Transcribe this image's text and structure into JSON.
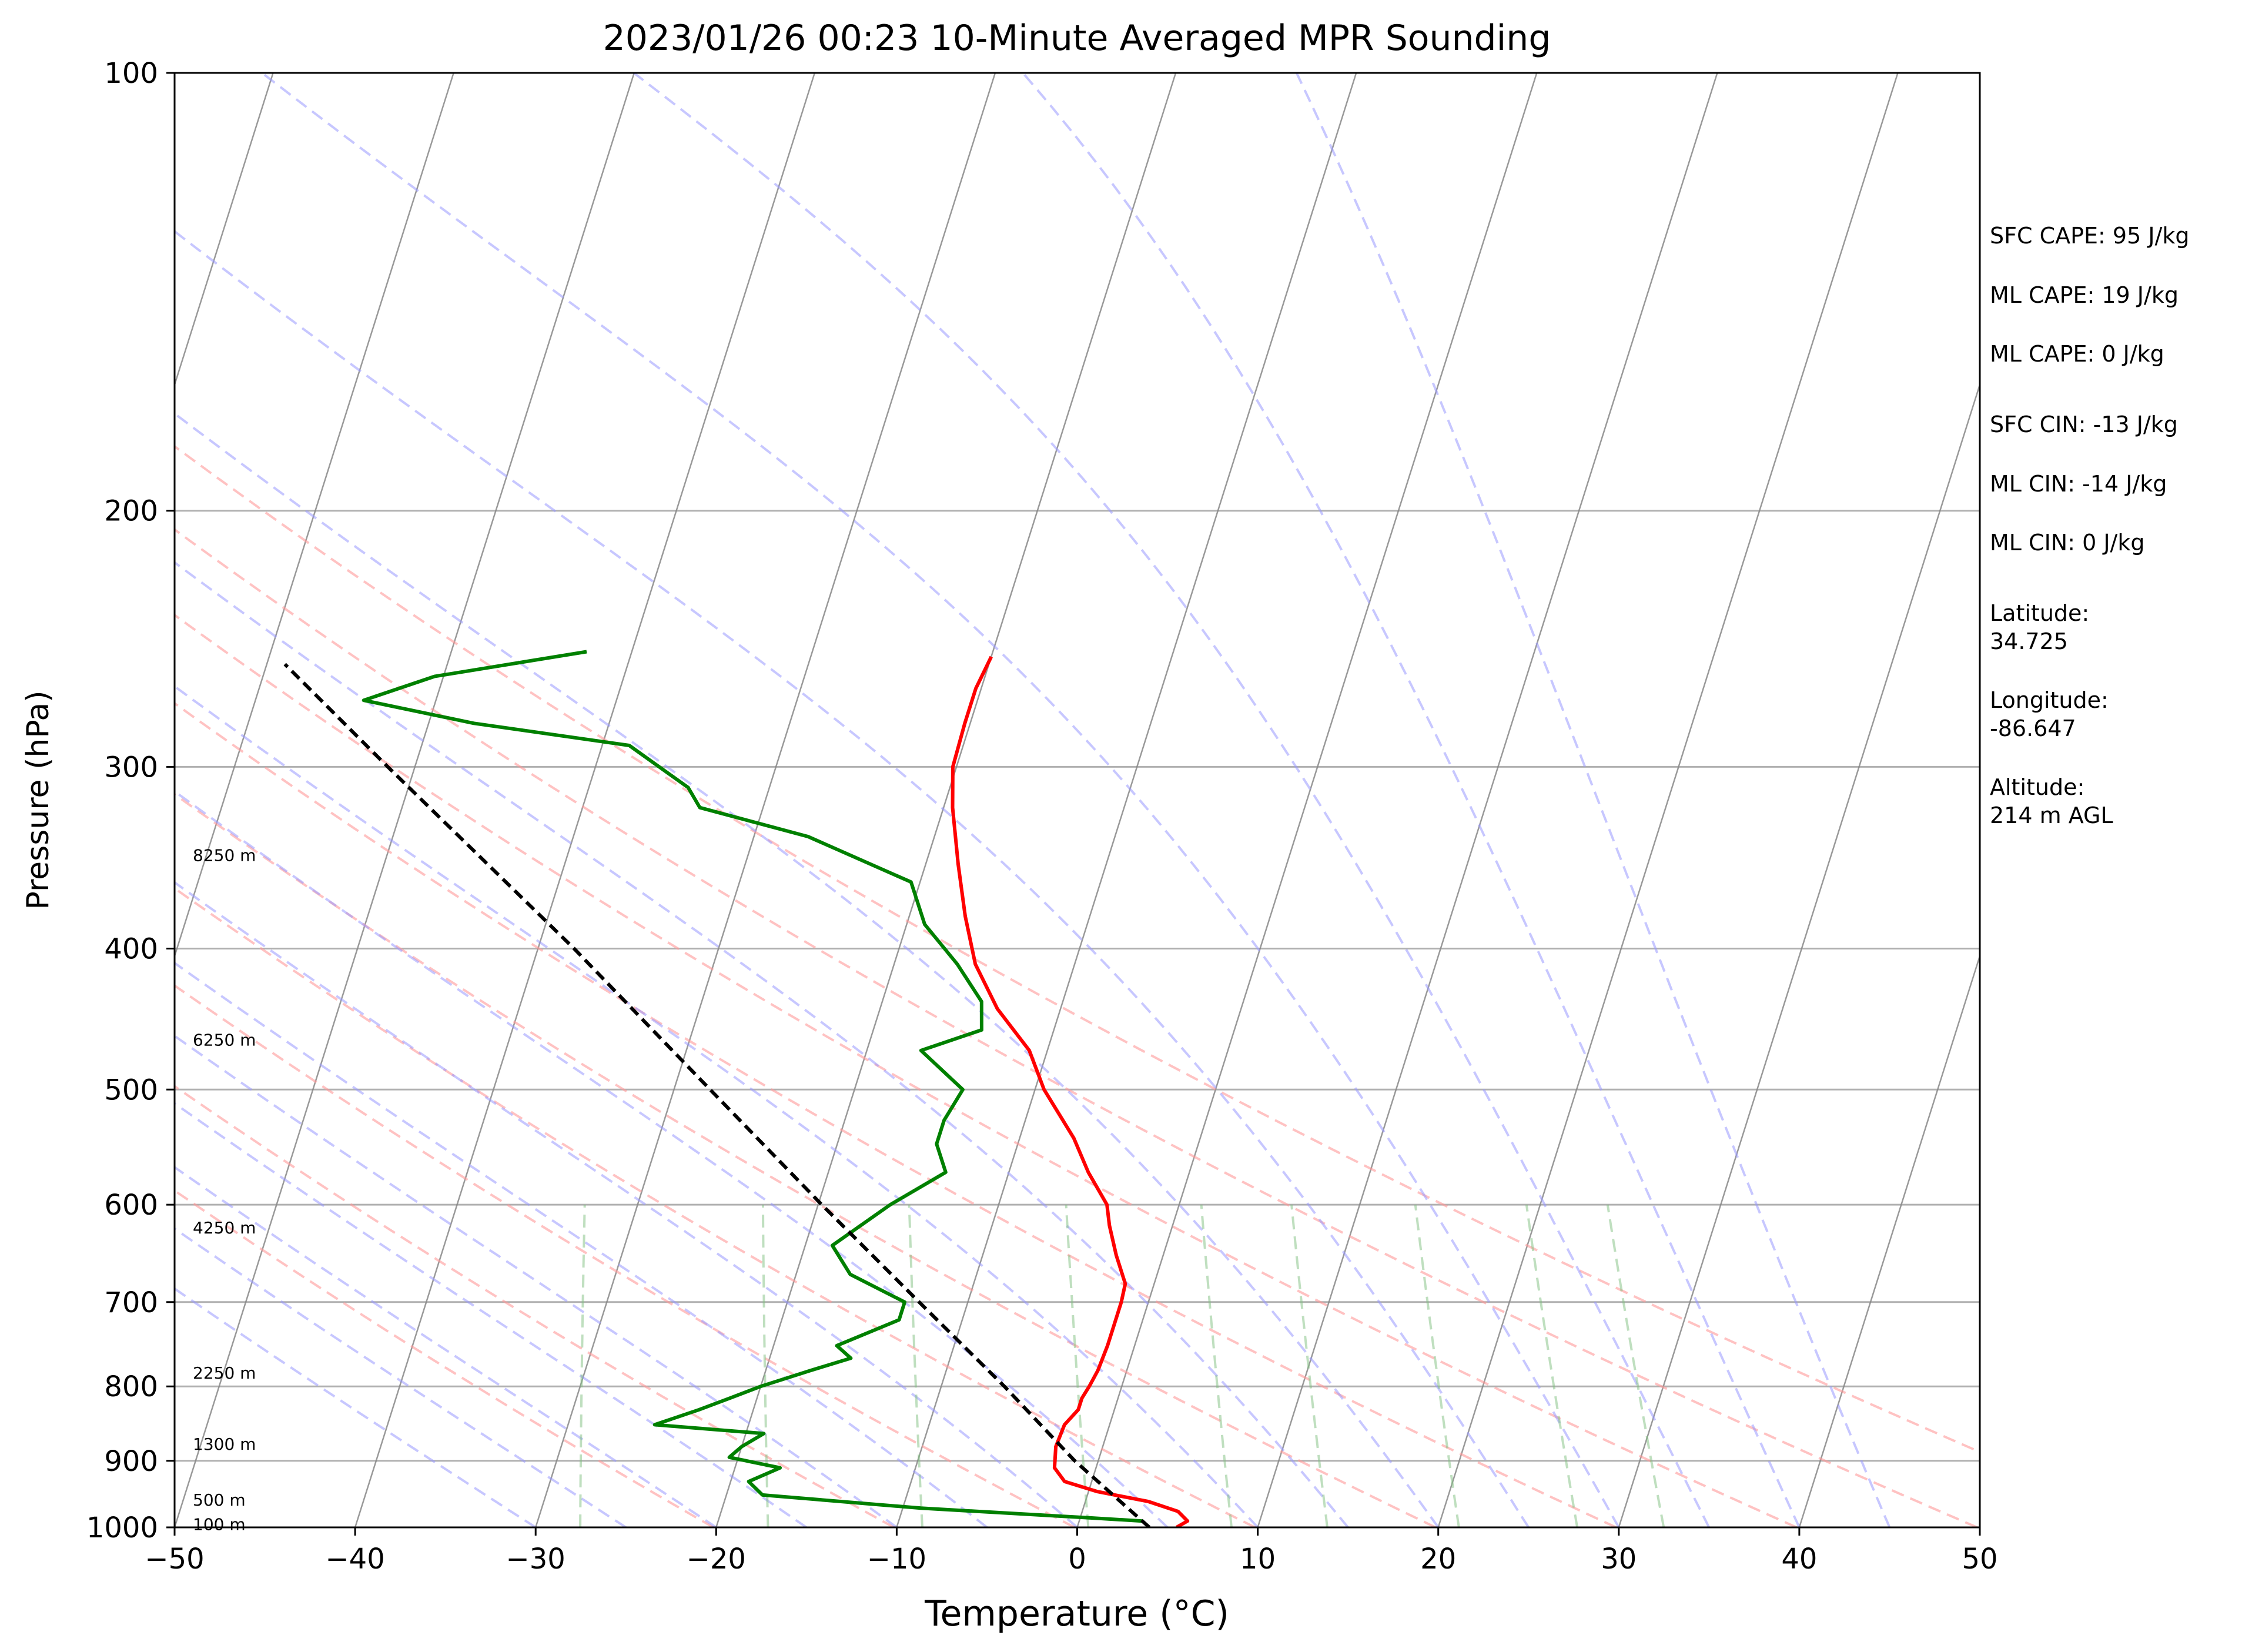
{
  "chart_data": {
    "type": "line",
    "subtype": "skew-t log-p sounding",
    "title": "2023/01/26 00:23 10-Minute Averaged MPR Sounding",
    "xlabel": "Temperature (°C)",
    "ylabel": "Pressure (hPa)",
    "xlim": [
      -50,
      50
    ],
    "ylim": [
      1000,
      100
    ],
    "y_scale": "log",
    "grid": true,
    "x_ticks": [
      -50,
      -40,
      -30,
      -20,
      -10,
      0,
      10,
      20,
      30,
      40,
      50
    ],
    "x_tick_labels": [
      "−50",
      "−40",
      "−30",
      "−20",
      "−10",
      "0",
      "10",
      "20",
      "30",
      "40",
      "50"
    ],
    "y_ticks": [
      1000,
      900,
      800,
      700,
      600,
      500,
      400,
      300,
      200,
      100
    ],
    "y_tick_labels": [
      "1000",
      "900",
      "800",
      "700",
      "600",
      "500",
      "400",
      "300",
      "200",
      "100"
    ],
    "background_lines": {
      "isotherms": {
        "color": "#888888",
        "start": -140,
        "end": 50,
        "step": 10
      },
      "dry_adiabats": {
        "color": "#ff9999",
        "theta_k": [
          253,
          263,
          273,
          283,
          293,
          303,
          313,
          323,
          333
        ]
      },
      "moist_adiabats": {
        "color": "#9999ff",
        "start_temps_c": [
          -30,
          -25,
          -20,
          -15,
          -10,
          -5,
          0,
          5,
          10,
          15,
          20,
          25,
          30,
          35,
          40,
          45
        ]
      },
      "mixing_ratio_lines": {
        "color": "#80c080",
        "p_range_hpa": [
          1000,
          600
        ],
        "w_g_per_kg": [
          0.4,
          1,
          2,
          4,
          7,
          10,
          16,
          24,
          32
        ]
      }
    },
    "series": [
      {
        "key": "temperature",
        "color": "#ff0000",
        "points": [
          [
            1000,
            5.5
          ],
          [
            990,
            6.0
          ],
          [
            975,
            5.3
          ],
          [
            960,
            3.5
          ],
          [
            945,
            0.5
          ],
          [
            930,
            -1.5
          ],
          [
            910,
            -2.3
          ],
          [
            880,
            -2.6
          ],
          [
            850,
            -2.5
          ],
          [
            830,
            -2.0
          ],
          [
            815,
            -2.0
          ],
          [
            800,
            -1.8
          ],
          [
            780,
            -1.6
          ],
          [
            750,
            -1.5
          ],
          [
            720,
            -1.5
          ],
          [
            700,
            -1.5
          ],
          [
            680,
            -1.6
          ],
          [
            650,
            -2.6
          ],
          [
            620,
            -3.5
          ],
          [
            600,
            -4.0
          ],
          [
            570,
            -5.6
          ],
          [
            540,
            -7.0
          ],
          [
            500,
            -9.5
          ],
          [
            470,
            -11.0
          ],
          [
            440,
            -13.5
          ],
          [
            410,
            -15.5
          ],
          [
            380,
            -16.9
          ],
          [
            350,
            -18.2
          ],
          [
            320,
            -19.5
          ],
          [
            300,
            -20.2
          ],
          [
            280,
            -20.3
          ],
          [
            265,
            -20.3
          ],
          [
            252,
            -20.0
          ]
        ]
      },
      {
        "key": "dewpoint",
        "color": "#008000",
        "points": [
          [
            990,
            3.5
          ],
          [
            985,
            0.5
          ],
          [
            970,
            -9.0
          ],
          [
            950,
            -18.0
          ],
          [
            930,
            -19.0
          ],
          [
            910,
            -17.5
          ],
          [
            895,
            -20.5
          ],
          [
            880,
            -20.0
          ],
          [
            862,
            -19.0
          ],
          [
            850,
            -25.2
          ],
          [
            830,
            -23.0
          ],
          [
            815,
            -21.5
          ],
          [
            800,
            -20.0
          ],
          [
            780,
            -17.5
          ],
          [
            765,
            -15.5
          ],
          [
            750,
            -16.5
          ],
          [
            720,
            -13.5
          ],
          [
            700,
            -13.5
          ],
          [
            670,
            -17.0
          ],
          [
            640,
            -18.5
          ],
          [
            600,
            -16.0
          ],
          [
            570,
            -13.5
          ],
          [
            545,
            -14.5
          ],
          [
            525,
            -14.5
          ],
          [
            500,
            -14.0
          ],
          [
            470,
            -17.0
          ],
          [
            455,
            -14.0
          ],
          [
            435,
            -14.5
          ],
          [
            410,
            -16.5
          ],
          [
            385,
            -19.0
          ],
          [
            360,
            -20.5
          ],
          [
            335,
            -27.0
          ],
          [
            320,
            -33.5
          ],
          [
            310,
            -34.5
          ],
          [
            290,
            -38.5
          ],
          [
            280,
            -47.5
          ],
          [
            270,
            -54.0
          ],
          [
            260,
            -50.5
          ],
          [
            250,
            -42.5
          ]
        ]
      },
      {
        "key": "parcel_profile",
        "color": "#000000",
        "style": "dashed",
        "points": [
          [
            1000,
            4.0
          ],
          [
            900,
            -1.3
          ],
          [
            800,
            -6.5
          ],
          [
            700,
            -12.7
          ],
          [
            600,
            -19.8
          ],
          [
            500,
            -28.0
          ],
          [
            400,
            -38.0
          ],
          [
            300,
            -51.5
          ],
          [
            255,
            -59.0
          ]
        ]
      }
    ],
    "height_labels": [
      {
        "p": 995,
        "text": "100 m"
      },
      {
        "p": 957,
        "text": "500 m"
      },
      {
        "p": 876,
        "text": "1300 m"
      },
      {
        "p": 783,
        "text": "2250 m"
      },
      {
        "p": 622,
        "text": "4250 m"
      },
      {
        "p": 462,
        "text": "6250 m"
      },
      {
        "p": 345,
        "text": "8250 m"
      }
    ],
    "indices": [
      "SFC CAPE: 95 J/kg",
      "ML CAPE: 19 J/kg",
      "ML CAPE: 0 J/kg",
      "SFC CIN: -13 J/kg",
      "ML CIN: -14 J/kg",
      "ML CIN: 0 J/kg"
    ],
    "location": [
      [
        "Latitude:",
        "34.725"
      ],
      [
        "Longitude:",
        "-86.647"
      ],
      [
        "Altitude:",
        "214 m AGL"
      ]
    ]
  }
}
